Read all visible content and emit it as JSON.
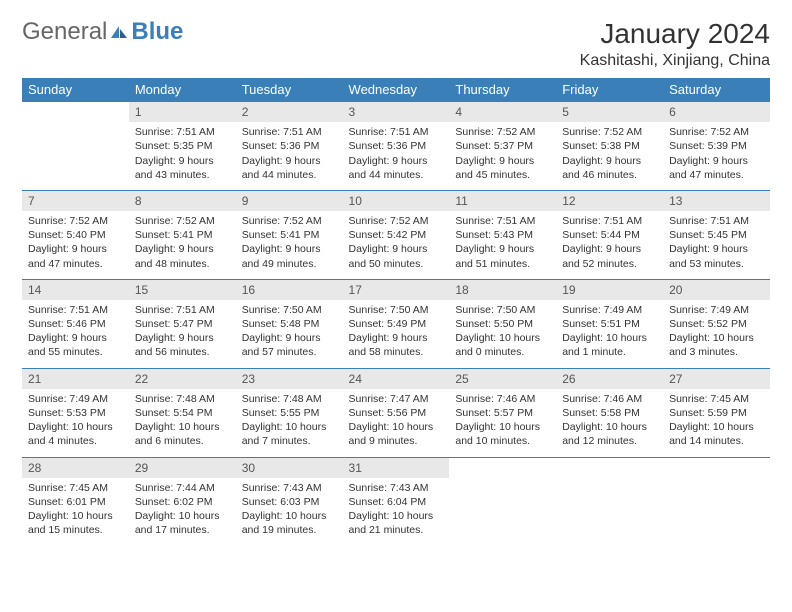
{
  "logo": {
    "text1": "General",
    "text2": "Blue",
    "icon_color": "#3a7fb8"
  },
  "header": {
    "month_title": "January 2024",
    "location": "Kashitashi, Xinjiang, China"
  },
  "colors": {
    "header_bg": "#3a7fb8",
    "header_fg": "#ffffff",
    "daynum_bg": "#e8e8e8",
    "rule": "#3a7fb8",
    "text": "#333333"
  },
  "days_of_week": [
    "Sunday",
    "Monday",
    "Tuesday",
    "Wednesday",
    "Thursday",
    "Friday",
    "Saturday"
  ],
  "weeks": [
    [
      null,
      {
        "n": "1",
        "sunrise": "7:51 AM",
        "sunset": "5:35 PM",
        "daylight": "9 hours and 43 minutes."
      },
      {
        "n": "2",
        "sunrise": "7:51 AM",
        "sunset": "5:36 PM",
        "daylight": "9 hours and 44 minutes."
      },
      {
        "n": "3",
        "sunrise": "7:51 AM",
        "sunset": "5:36 PM",
        "daylight": "9 hours and 44 minutes."
      },
      {
        "n": "4",
        "sunrise": "7:52 AM",
        "sunset": "5:37 PM",
        "daylight": "9 hours and 45 minutes."
      },
      {
        "n": "5",
        "sunrise": "7:52 AM",
        "sunset": "5:38 PM",
        "daylight": "9 hours and 46 minutes."
      },
      {
        "n": "6",
        "sunrise": "7:52 AM",
        "sunset": "5:39 PM",
        "daylight": "9 hours and 47 minutes."
      }
    ],
    [
      {
        "n": "7",
        "sunrise": "7:52 AM",
        "sunset": "5:40 PM",
        "daylight": "9 hours and 47 minutes."
      },
      {
        "n": "8",
        "sunrise": "7:52 AM",
        "sunset": "5:41 PM",
        "daylight": "9 hours and 48 minutes."
      },
      {
        "n": "9",
        "sunrise": "7:52 AM",
        "sunset": "5:41 PM",
        "daylight": "9 hours and 49 minutes."
      },
      {
        "n": "10",
        "sunrise": "7:52 AM",
        "sunset": "5:42 PM",
        "daylight": "9 hours and 50 minutes."
      },
      {
        "n": "11",
        "sunrise": "7:51 AM",
        "sunset": "5:43 PM",
        "daylight": "9 hours and 51 minutes."
      },
      {
        "n": "12",
        "sunrise": "7:51 AM",
        "sunset": "5:44 PM",
        "daylight": "9 hours and 52 minutes."
      },
      {
        "n": "13",
        "sunrise": "7:51 AM",
        "sunset": "5:45 PM",
        "daylight": "9 hours and 53 minutes."
      }
    ],
    [
      {
        "n": "14",
        "sunrise": "7:51 AM",
        "sunset": "5:46 PM",
        "daylight": "9 hours and 55 minutes."
      },
      {
        "n": "15",
        "sunrise": "7:51 AM",
        "sunset": "5:47 PM",
        "daylight": "9 hours and 56 minutes."
      },
      {
        "n": "16",
        "sunrise": "7:50 AM",
        "sunset": "5:48 PM",
        "daylight": "9 hours and 57 minutes."
      },
      {
        "n": "17",
        "sunrise": "7:50 AM",
        "sunset": "5:49 PM",
        "daylight": "9 hours and 58 minutes."
      },
      {
        "n": "18",
        "sunrise": "7:50 AM",
        "sunset": "5:50 PM",
        "daylight": "10 hours and 0 minutes."
      },
      {
        "n": "19",
        "sunrise": "7:49 AM",
        "sunset": "5:51 PM",
        "daylight": "10 hours and 1 minute."
      },
      {
        "n": "20",
        "sunrise": "7:49 AM",
        "sunset": "5:52 PM",
        "daylight": "10 hours and 3 minutes."
      }
    ],
    [
      {
        "n": "21",
        "sunrise": "7:49 AM",
        "sunset": "5:53 PM",
        "daylight": "10 hours and 4 minutes."
      },
      {
        "n": "22",
        "sunrise": "7:48 AM",
        "sunset": "5:54 PM",
        "daylight": "10 hours and 6 minutes."
      },
      {
        "n": "23",
        "sunrise": "7:48 AM",
        "sunset": "5:55 PM",
        "daylight": "10 hours and 7 minutes."
      },
      {
        "n": "24",
        "sunrise": "7:47 AM",
        "sunset": "5:56 PM",
        "daylight": "10 hours and 9 minutes."
      },
      {
        "n": "25",
        "sunrise": "7:46 AM",
        "sunset": "5:57 PM",
        "daylight": "10 hours and 10 minutes."
      },
      {
        "n": "26",
        "sunrise": "7:46 AM",
        "sunset": "5:58 PM",
        "daylight": "10 hours and 12 minutes."
      },
      {
        "n": "27",
        "sunrise": "7:45 AM",
        "sunset": "5:59 PM",
        "daylight": "10 hours and 14 minutes."
      }
    ],
    [
      {
        "n": "28",
        "sunrise": "7:45 AM",
        "sunset": "6:01 PM",
        "daylight": "10 hours and 15 minutes."
      },
      {
        "n": "29",
        "sunrise": "7:44 AM",
        "sunset": "6:02 PM",
        "daylight": "10 hours and 17 minutes."
      },
      {
        "n": "30",
        "sunrise": "7:43 AM",
        "sunset": "6:03 PM",
        "daylight": "10 hours and 19 minutes."
      },
      {
        "n": "31",
        "sunrise": "7:43 AM",
        "sunset": "6:04 PM",
        "daylight": "10 hours and 21 minutes."
      },
      null,
      null,
      null
    ]
  ],
  "labels": {
    "sunrise": "Sunrise: ",
    "sunset": "Sunset: ",
    "daylight": "Daylight: "
  }
}
